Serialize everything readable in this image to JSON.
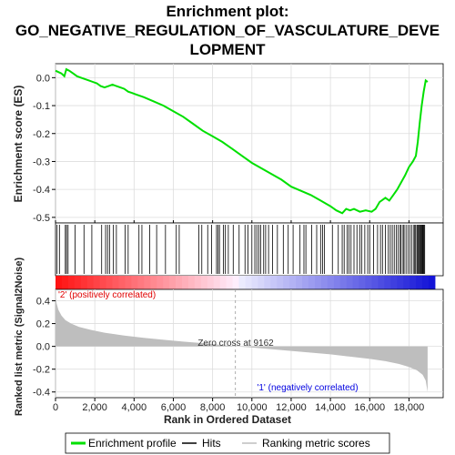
{
  "chart_data": {
    "type": "line",
    "title_lines": [
      "Enrichment plot:",
      "GO_NEGATIVE_REGULATION_OF_VASCULATURE_DEVE",
      "LOPMENT"
    ],
    "xlabel": "Rank in Ordered Dataset",
    "ylabel_top": "Enrichment score (ES)",
    "ylabel_bottom": "Ranked list metric (Signal2Noise)",
    "xlim": [
      0,
      19000
    ],
    "ylim_es": [
      -0.52,
      0.05
    ],
    "ylim_metric": [
      -0.45,
      0.5
    ],
    "x_ticks": [
      0,
      2000,
      4000,
      6000,
      8000,
      10000,
      12000,
      14000,
      16000,
      18000
    ],
    "x_tick_labels": [
      "0",
      "2,000",
      "4,000",
      "6,000",
      "8,000",
      "10,000",
      "12,000",
      "14,000",
      "16,000",
      "18,000"
    ],
    "es_ticks": [
      0.0,
      -0.1,
      -0.2,
      -0.3,
      -0.4,
      -0.5
    ],
    "es_tick_labels": [
      "0.0",
      "-0.1",
      "-0.2",
      "-0.3",
      "-0.4",
      "-0.5"
    ],
    "metric_ticks": [
      0.4,
      0.2,
      0.0,
      -0.2,
      -0.4
    ],
    "metric_tick_labels": [
      "0.4",
      "0.2",
      "0.0",
      "-0.2",
      "-0.4"
    ],
    "zero_cross": 9162,
    "zero_cross_label": "Zero cross at 9162",
    "pos_label": "'2' (positively correlated)",
    "neg_label": "'1' (negatively correlated)",
    "es_profile": {
      "x": [
        0,
        150,
        300,
        450,
        550,
        700,
        900,
        1100,
        1300,
        1500,
        1700,
        1900,
        2100,
        2300,
        2500,
        2700,
        2900,
        3100,
        3300,
        3500,
        3700,
        3900,
        4100,
        4500,
        5000,
        5500,
        6000,
        6500,
        7000,
        7500,
        8000,
        8500,
        9000,
        9500,
        10000,
        10500,
        11000,
        11500,
        12000,
        12500,
        13000,
        13500,
        14000,
        14300,
        14600,
        14800,
        15000,
        15200,
        15500,
        15800,
        16100,
        16300,
        16500,
        16800,
        17000,
        17200,
        17400,
        17600,
        17800,
        18000,
        18200,
        18350,
        18450,
        18550,
        18650,
        18750,
        18850,
        18950
      ],
      "y": [
        0.025,
        0.02,
        0.015,
        0.005,
        0.03,
        0.025,
        0.015,
        0.005,
        0.0,
        -0.005,
        -0.01,
        -0.015,
        -0.02,
        -0.03,
        -0.035,
        -0.03,
        -0.025,
        -0.03,
        -0.035,
        -0.04,
        -0.05,
        -0.055,
        -0.06,
        -0.07,
        -0.085,
        -0.1,
        -0.12,
        -0.14,
        -0.165,
        -0.19,
        -0.21,
        -0.23,
        -0.255,
        -0.28,
        -0.305,
        -0.325,
        -0.345,
        -0.365,
        -0.39,
        -0.405,
        -0.42,
        -0.44,
        -0.46,
        -0.475,
        -0.485,
        -0.47,
        -0.475,
        -0.47,
        -0.48,
        -0.475,
        -0.48,
        -0.47,
        -0.445,
        -0.43,
        -0.44,
        -0.42,
        -0.4,
        -0.375,
        -0.35,
        -0.32,
        -0.3,
        -0.28,
        -0.23,
        -0.16,
        -0.1,
        -0.05,
        -0.01,
        -0.015
      ]
    },
    "hits": [
      80,
      200,
      500,
      560,
      640,
      1000,
      1450,
      1850,
      2350,
      2550,
      2650,
      2750,
      2950,
      3100,
      3550,
      3700,
      4250,
      4400,
      4800,
      5150,
      5600,
      6150,
      6300,
      7300,
      7450,
      7750,
      7950,
      8200,
      8280,
      8350,
      8550,
      8650,
      8800,
      9050,
      9350,
      9650,
      9800,
      10000,
      10150,
      10250,
      10350,
      10450,
      10600,
      10700,
      10850,
      11050,
      11300,
      11600,
      11850,
      12100,
      12450,
      12650,
      12750,
      13050,
      13300,
      13500,
      13600,
      13700,
      14100,
      14400,
      14600,
      14700,
      14850,
      14950,
      15050,
      15200,
      15350,
      15500,
      15600,
      15750,
      15900,
      16000,
      16200,
      16400,
      16550,
      16650,
      16800,
      16950,
      17050,
      17150,
      17250,
      17350,
      17450,
      17550,
      17600,
      17700,
      17750,
      17850,
      17950,
      18050,
      18150,
      18250,
      18300,
      18350,
      18420,
      18470,
      18520,
      18560,
      18600,
      18640,
      18680,
      18720,
      18760,
      18800
    ],
    "metric_profile": {
      "x": [
        0,
        50,
        150,
        300,
        500,
        800,
        1200,
        1800,
        2500,
        3500,
        4500,
        5500,
        6500,
        7500,
        8500,
        9162,
        10000,
        11000,
        12000,
        13000,
        14000,
        15000,
        16000,
        16800,
        17500,
        18000,
        18400,
        18700,
        18850,
        18950
      ],
      "y": [
        0.46,
        0.38,
        0.32,
        0.27,
        0.23,
        0.2,
        0.17,
        0.145,
        0.12,
        0.095,
        0.075,
        0.058,
        0.042,
        0.028,
        0.012,
        0.0,
        -0.01,
        -0.025,
        -0.04,
        -0.055,
        -0.07,
        -0.09,
        -0.11,
        -0.13,
        -0.155,
        -0.18,
        -0.21,
        -0.25,
        -0.3,
        -0.4
      ]
    },
    "legend": [
      "Enrichment profile",
      "Hits",
      "Ranking metric scores"
    ],
    "colors": {
      "es_line": "#00e000",
      "hit_line": "#000000",
      "metric_fill": "#bebebe",
      "pos_text": "#e00000",
      "neg_text": "#0000e0",
      "zero_line": "#999999",
      "grid": "#dddddd",
      "frame": "#000000"
    }
  }
}
